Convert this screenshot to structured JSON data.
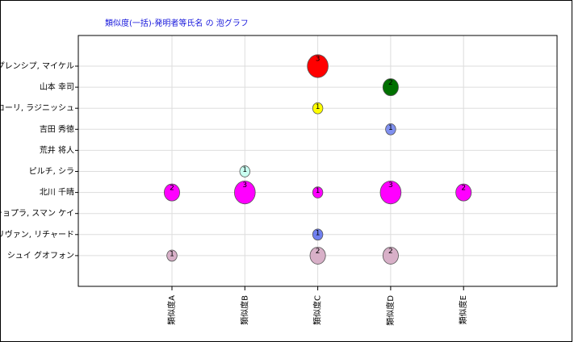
{
  "chart_data": {
    "type": "bubble",
    "title": "類似度(一括)-発明者等氏名 の 泡グラフ",
    "x_categories": [
      "類似度A",
      "類似度B",
      "類似度C",
      "類似度D",
      "類似度E"
    ],
    "y_categories": [
      "プレンシプ, マイケル",
      "山本 幸司",
      "コーリ, ラジニッシュ",
      "吉田 秀徳",
      "荒井 将人",
      "ピルチ, シラ",
      "北川 千晴",
      "チョプラ, スマン ケイ",
      "サリヴァン, リチャード",
      "シュイ グオフォン"
    ],
    "grid": true,
    "points": [
      {
        "x": "類似度C",
        "y": "プレンシプ, マイケル",
        "size": 3,
        "color": "#ff0000"
      },
      {
        "x": "類似度D",
        "y": "山本 幸司",
        "size": 2,
        "color": "#007000"
      },
      {
        "x": "類似度C",
        "y": "コーリ, ラジニッシュ",
        "size": 1,
        "color": "#ffff00"
      },
      {
        "x": "類似度D",
        "y": "吉田 秀徳",
        "size": 1,
        "color": "#8090f0"
      },
      {
        "x": "類似度B",
        "y": "ピルチ, シラ",
        "size": 1,
        "color": "#c8fff0"
      },
      {
        "x": "類似度A",
        "y": "北川 千晴",
        "size": 2,
        "color": "#ff00ff"
      },
      {
        "x": "類似度B",
        "y": "北川 千晴",
        "size": 3,
        "color": "#ff00ff"
      },
      {
        "x": "類似度C",
        "y": "北川 千晴",
        "size": 1,
        "color": "#ff00ff"
      },
      {
        "x": "類似度D",
        "y": "北川 千晴",
        "size": 3,
        "color": "#ff00ff"
      },
      {
        "x": "類似度E",
        "y": "北川 千晴",
        "size": 2,
        "color": "#ff00ff"
      },
      {
        "x": "類似度C",
        "y": "サリヴァン, リチャード",
        "size": 1,
        "color": "#7080f0"
      },
      {
        "x": "類似度A",
        "y": "シュイ グオフォン",
        "size": 1,
        "color": "#d8b0c8"
      },
      {
        "x": "類似度C",
        "y": "シュイ グオフォン",
        "size": 2,
        "color": "#d8b0c8"
      },
      {
        "x": "類似度D",
        "y": "シュイ グオフォン",
        "size": 2,
        "color": "#d8b0c8"
      }
    ]
  }
}
